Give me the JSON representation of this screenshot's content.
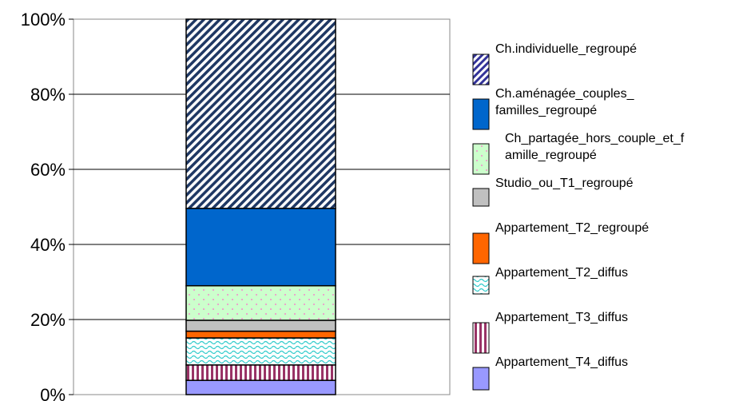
{
  "chart_data": {
    "type": "bar",
    "stacked": true,
    "percent": true,
    "title": "",
    "xlabel": "",
    "ylabel": "",
    "categories": [
      ""
    ],
    "ylim": [
      0,
      100
    ],
    "yticks": [
      "0%",
      "20%",
      "40%",
      "60%",
      "80%",
      "100%"
    ],
    "grid": true,
    "legend_position": "right",
    "series": [
      {
        "name": "Appartement_T4_diffus",
        "values": [
          3.8
        ],
        "color": "#9999ff",
        "pattern": "solid-light"
      },
      {
        "name": "Appartement_T3_diffus",
        "values": [
          4.1
        ],
        "color": "#993366",
        "pattern": "vertical-stripes"
      },
      {
        "name": "Appartement_T2_diffus",
        "values": [
          7.2
        ],
        "color": "#33cccc",
        "pattern": "waves"
      },
      {
        "name": "Appartement_T2_regroupé",
        "values": [
          1.8
        ],
        "color": "#ff6600",
        "pattern": "solid"
      },
      {
        "name": "Studio_ou_T1_regroupé",
        "values": [
          2.9
        ],
        "color": "#c0c0c0",
        "pattern": "solid"
      },
      {
        "name": "Ch_partagée_hors_couple_et_famille_regroupé",
        "values": [
          9.2
        ],
        "color": "#ccffcc",
        "pattern": "dots"
      },
      {
        "name": "Ch.aménagée_couples_familles_regroupé",
        "values": [
          20.6
        ],
        "color": "#0066cc",
        "pattern": "solid"
      },
      {
        "name": "Ch.individuelle_regroupé",
        "values": [
          50.4
        ],
        "color": "#333399",
        "pattern": "diagonal"
      }
    ],
    "legend_lines": [
      [
        "Ch.individuelle_regroupé"
      ],
      [
        "Ch.aménagée_couples_",
        "familles_regroupé"
      ],
      [
        "Ch_partagée_hors_couple_et_f",
        "amille_regroupé"
      ],
      [
        "Studio_ou_T1_regroupé"
      ],
      [
        "Appartement_T2_regroupé"
      ],
      [
        "Appartement_T2_diffus"
      ],
      [
        "Appartement_T3_diffus"
      ],
      [
        "Appartement_T4_diffus"
      ]
    ]
  }
}
